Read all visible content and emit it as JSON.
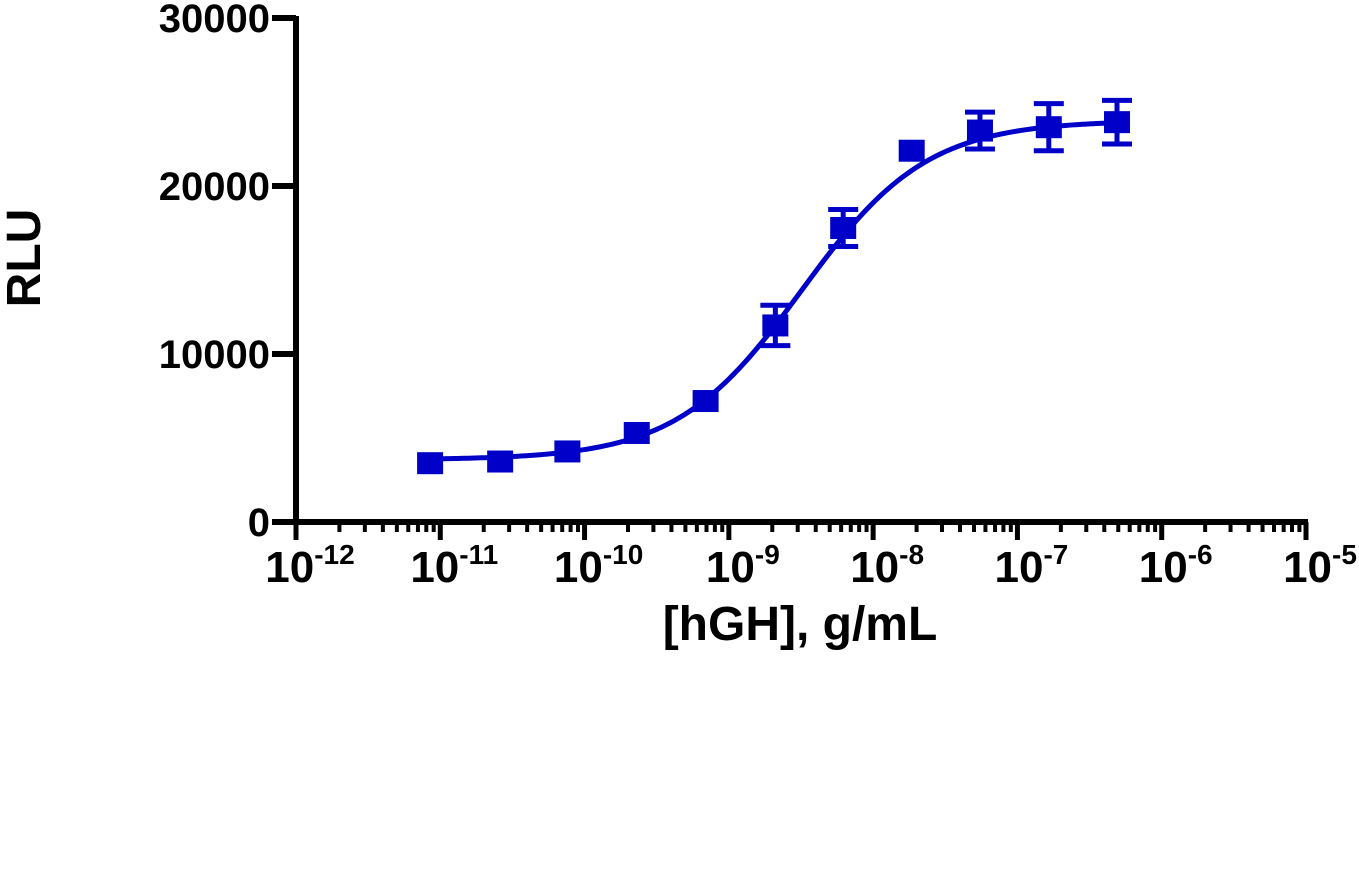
{
  "chart_data": {
    "type": "scatter",
    "xlabel": "[hGH], g/mL",
    "ylabel": "RLU",
    "x_scale": "log",
    "xlim": [
      1e-12,
      1e-05
    ],
    "ylim": [
      0,
      30000
    ],
    "grid": false,
    "legend": "none",
    "y_ticks": [
      "0",
      "10000",
      "20000",
      "30000"
    ],
    "x_ticks": [
      {
        "base": "10",
        "exp": "-12",
        "value": 1e-12
      },
      {
        "base": "10",
        "exp": "-11",
        "value": 1e-11
      },
      {
        "base": "10",
        "exp": "-10",
        "value": 1e-10
      },
      {
        "base": "10",
        "exp": "-9",
        "value": 1e-09
      },
      {
        "base": "10",
        "exp": "-8",
        "value": 1e-08
      },
      {
        "base": "10",
        "exp": "-7",
        "value": 1e-07
      },
      {
        "base": "10",
        "exp": "-6",
        "value": 1e-06
      },
      {
        "base": "10",
        "exp": "-5",
        "value": 1e-05
      }
    ],
    "series": [
      {
        "color": "#0000c8",
        "marker": "square",
        "x": [
          8.5e-12,
          2.6e-11,
          7.6e-11,
          2.3e-10,
          6.9e-10,
          2.1e-09,
          6.2e-09,
          1.85e-08,
          5.5e-08,
          1.65e-07,
          4.9e-07
        ],
        "y": [
          3500,
          3600,
          4200,
          5300,
          7200,
          11700,
          17500,
          22100,
          23300,
          23500,
          23800
        ],
        "error": [
          0,
          0,
          0,
          0,
          0,
          1200,
          1100,
          0,
          1100,
          1400,
          1300
        ]
      }
    ],
    "fit": {
      "type": "sigmoidal dose-response",
      "color": "#0000c8",
      "bottom": 3700,
      "top": 23900,
      "ec50": 3.2e-09,
      "hill_slope": 1.0
    }
  }
}
